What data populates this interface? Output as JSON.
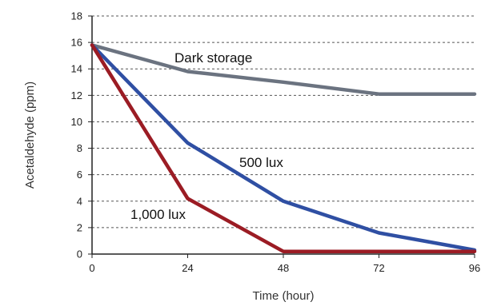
{
  "chart_data": {
    "type": "line",
    "title": "",
    "xlabel": "Time (hour)",
    "ylabel": "Acetaldehyde (ppm)",
    "x": [
      0,
      24,
      48,
      72,
      96
    ],
    "x_ticks": [
      "0",
      "24",
      "48",
      "72",
      "96"
    ],
    "y_ticks": [
      "0",
      "2",
      "4",
      "6",
      "8",
      "10",
      "12",
      "14",
      "16",
      "18"
    ],
    "xlim": [
      0,
      96
    ],
    "ylim": [
      0,
      18
    ],
    "grid": "horizontal dashed",
    "legend": "inline labels",
    "series": [
      {
        "name": "Dark storage",
        "color": "#6b7380",
        "values": [
          15.8,
          13.8,
          13.0,
          12.1,
          12.1
        ]
      },
      {
        "name": "500 lux",
        "color": "#2f4fa3",
        "values": [
          15.8,
          8.4,
          4.0,
          1.6,
          0.3
        ]
      },
      {
        "name": "1,000 lux",
        "color": "#9b1c24",
        "values": [
          15.8,
          4.2,
          0.2,
          0.2,
          0.2
        ]
      }
    ]
  }
}
